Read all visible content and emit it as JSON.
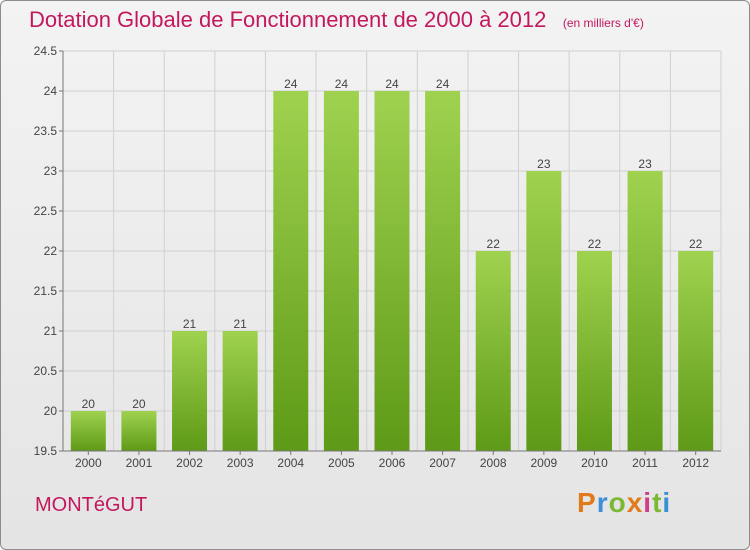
{
  "header": {
    "title": "Dotation Globale de Fonctionnement de 2000 à 2012",
    "unit": "(en milliers d'€)"
  },
  "footer": {
    "commune": "MONTéGUT",
    "logo": {
      "letters": [
        "P",
        "r",
        "o",
        "x",
        "i",
        "t",
        "i"
      ],
      "colors": [
        "#e07a1a",
        "#3c8fd6",
        "#7cb833",
        "#e07a1a",
        "#d23a8a",
        "#7cb833",
        "#3c8fd6"
      ]
    }
  },
  "chart_data": {
    "type": "bar",
    "title": "Dotation Globale de Fonctionnement de 2000 à 2012",
    "categories": [
      "2000",
      "2001",
      "2002",
      "2003",
      "2004",
      "2005",
      "2006",
      "2007",
      "2008",
      "2009",
      "2010",
      "2011",
      "2012"
    ],
    "values": [
      20,
      20,
      21,
      21,
      24,
      24,
      24,
      24,
      22,
      23,
      22,
      23,
      22
    ],
    "data_labels": [
      "20",
      "20",
      "21",
      "21",
      "24",
      "24",
      "24",
      "24",
      "22",
      "23",
      "22",
      "23",
      "22"
    ],
    "yticks": [
      19.5,
      20,
      20.5,
      21,
      21.5,
      22,
      22.5,
      23,
      23.5,
      24,
      24.5
    ],
    "ytick_labels": [
      "19.5",
      "20",
      "20.5",
      "21",
      "21.5",
      "22",
      "22.5",
      "23",
      "23.5",
      "24",
      "24.5"
    ],
    "ylim": [
      19.5,
      24.5
    ],
    "grid": true,
    "colors": {
      "bar_light": "#9fd24f",
      "bar_dark": "#5e9a17",
      "grid": "#d0d0d0",
      "axis": "#777777",
      "label": "#444444"
    }
  }
}
